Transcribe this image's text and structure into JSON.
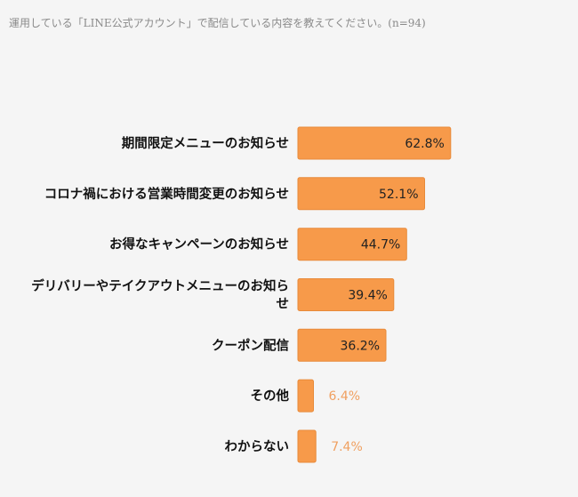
{
  "title": "運用している「LINE公式アカウント」で配信している内容を教えてください。(n=94)",
  "chart_data": {
    "type": "bar",
    "orientation": "horizontal",
    "title": "運用している「LINE公式アカウント」で配信している内容を教えてください。(n=94)",
    "categories": [
      "期間限定メニューのお知らせ",
      "コロナ禍における営業時間変更のお知らせ",
      "お得なキャンペーンのお知らせ",
      "デリバリーやテイクアウトメニューのお知らせ",
      "クーポン配信",
      "その他",
      "わからない"
    ],
    "category_lines": [
      [
        "期間限定メニューのお知らせ"
      ],
      [
        "コロナ禍における営業時間変更のお知らせ"
      ],
      [
        "お得なキャンペーンのお知らせ"
      ],
      [
        "デリバリーやテイクアウトメニューのお知ら",
        "せ"
      ],
      [
        "クーポン配信"
      ],
      [
        "その他"
      ],
      [
        "わからない"
      ]
    ],
    "values": [
      62.8,
      52.1,
      44.7,
      39.4,
      36.2,
      6.4,
      7.4
    ],
    "value_labels": [
      "62.8%",
      "52.1%",
      "44.7%",
      "39.4%",
      "36.2%",
      "6.4%",
      "7.4%"
    ],
    "unit": "%",
    "xlim": [
      0,
      100
    ],
    "bar_color": "#f79a4a",
    "bar_edge_color": "#e88a3a",
    "inside_label_color": "#222222",
    "outside_label_color": "#f0a060",
    "grid": false,
    "legend": "none"
  }
}
